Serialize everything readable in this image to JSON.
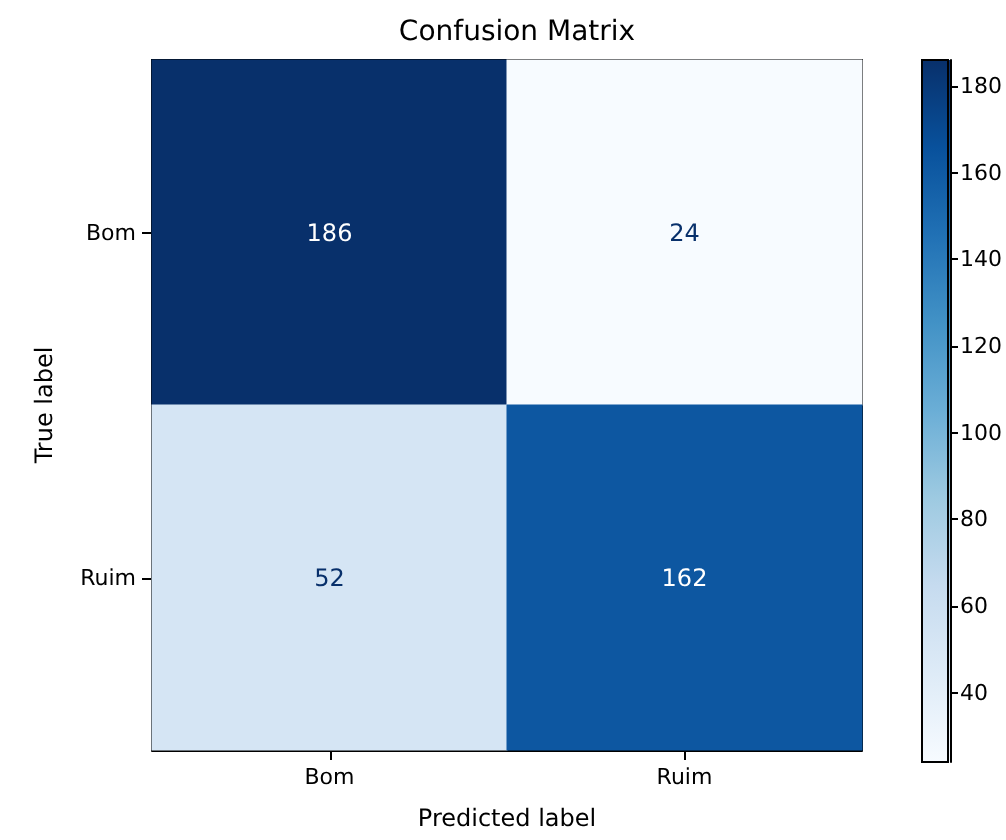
{
  "chart_data": {
    "type": "heatmap",
    "title": "Confusion Matrix",
    "xlabel": "Predicted label",
    "ylabel": "True label",
    "categories": [
      "Bom",
      "Ruim"
    ],
    "y_categories": [
      "Bom",
      "Ruim"
    ],
    "cells": [
      [
        186,
        24
      ],
      [
        52,
        162
      ]
    ],
    "data_labels": true,
    "clim": [
      24,
      186
    ],
    "cticks": [
      40,
      60,
      80,
      100,
      120,
      140,
      160,
      180
    ]
  }
}
